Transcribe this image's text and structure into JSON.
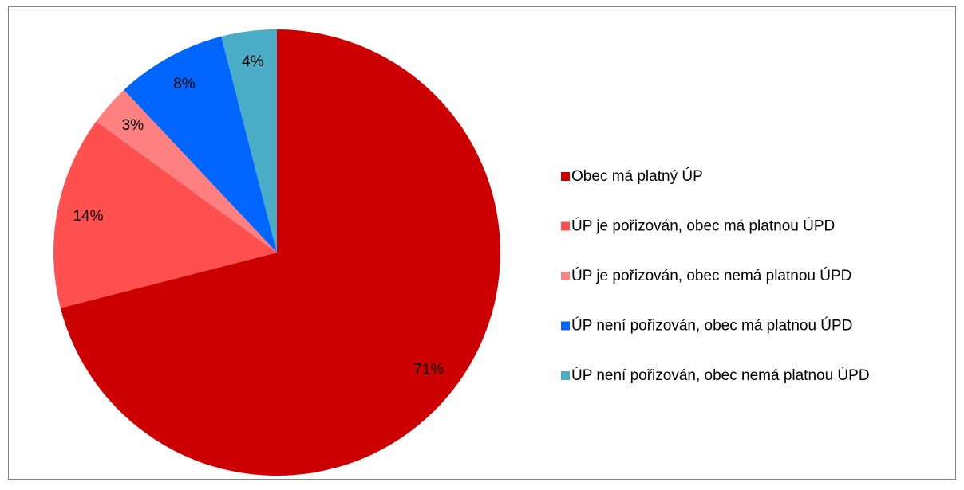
{
  "chart_data": {
    "type": "pie",
    "categories": [
      "Obec má platný ÚP",
      "ÚP je pořizován, obec má platnou ÚPD",
      "ÚP je pořizován, obec nemá platnou ÚPD",
      "ÚP není pořizován, obec má platnou ÚPD",
      "ÚP není pořizován, obec nemá platnou ÚPD"
    ],
    "values": [
      71,
      14,
      3,
      8,
      4
    ],
    "value_labels": [
      "71%",
      "14%",
      "3%",
      "8%",
      "4%"
    ],
    "colors": [
      "#cc0000",
      "#ff5050",
      "#ff8080",
      "#0066ff",
      "#4bacc6"
    ],
    "legend": "right"
  }
}
